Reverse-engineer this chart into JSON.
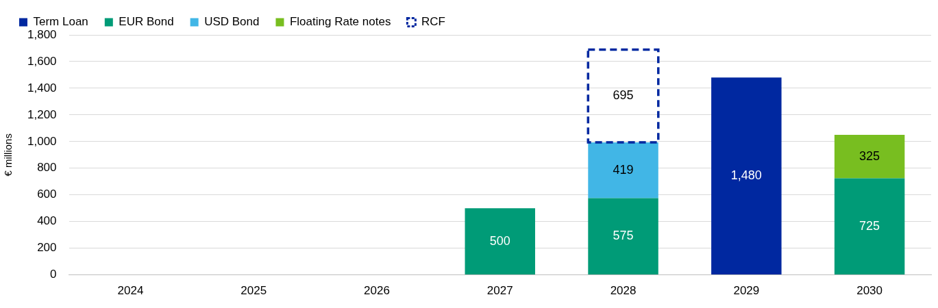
{
  "chart_data": {
    "type": "bar",
    "stacked": true,
    "ylabel": "€ millions",
    "categories": [
      "2024",
      "2025",
      "2026",
      "2027",
      "2028",
      "2029",
      "2030"
    ],
    "series": [
      {
        "name": "Term Loan",
        "color": "#0028a0",
        "values": [
          null,
          null,
          null,
          null,
          null,
          1480,
          null
        ],
        "value_labels": [
          null,
          null,
          null,
          null,
          null,
          "1,480",
          null
        ]
      },
      {
        "name": "EUR Bond",
        "color": "#009b77",
        "values": [
          null,
          null,
          null,
          500,
          575,
          null,
          725
        ],
        "value_labels": [
          null,
          null,
          null,
          "500",
          "575",
          null,
          "725"
        ]
      },
      {
        "name": "USD Bond",
        "color": "#41b6e6",
        "values": [
          null,
          null,
          null,
          null,
          419,
          null,
          null
        ],
        "value_labels": [
          null,
          null,
          null,
          null,
          "419",
          null,
          null
        ]
      },
      {
        "name": "Floating Rate notes",
        "color": "#78be20",
        "values": [
          null,
          null,
          null,
          null,
          null,
          null,
          325
        ],
        "value_labels": [
          null,
          null,
          null,
          null,
          null,
          null,
          "325"
        ]
      },
      {
        "name": "RCF",
        "color": "#0028a0",
        "line_style": "dashed",
        "values": [
          null,
          null,
          null,
          null,
          695,
          null,
          null
        ],
        "value_labels": [
          null,
          null,
          null,
          null,
          "695",
          null,
          null
        ]
      }
    ],
    "ylim": [
      0,
      1800
    ],
    "yticks": [
      0,
      200,
      400,
      600,
      800,
      {
        "value": 1000,
        "label": "1,000"
      },
      {
        "value": 1200,
        "label": "1,200"
      },
      {
        "value": 1400,
        "label": "1,400"
      },
      {
        "value": 1600,
        "label": "1,600"
      },
      {
        "value": 1800,
        "label": "1,800"
      }
    ],
    "grid": "y",
    "legend": "top left"
  }
}
